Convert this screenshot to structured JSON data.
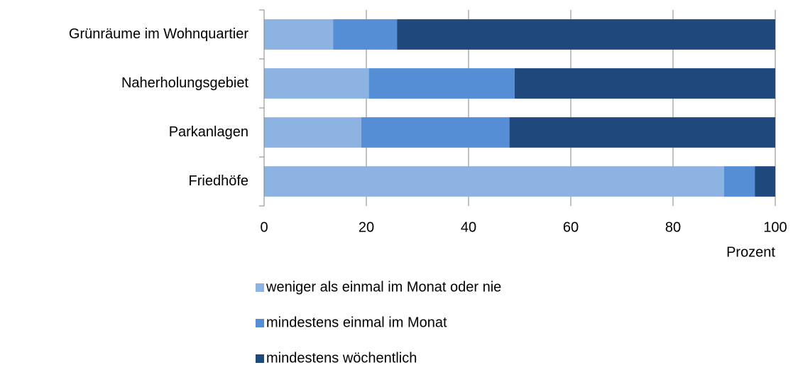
{
  "chart_data": {
    "type": "stacked_barh",
    "categories": [
      "Grünräume im Wohnquartier",
      "Naherholungsgebiet",
      "Parkanlagen",
      "Friedhöfe"
    ],
    "series": [
      {
        "name": "weniger als einmal im Monat oder nie",
        "color": "#8db3e2",
        "values": [
          13.5,
          20.5,
          19,
          90
        ]
      },
      {
        "name": "mindestens einmal im Monat",
        "color": "#558ed5",
        "values": [
          12.5,
          28.5,
          29,
          6
        ]
      },
      {
        "name": "mindestens wöchentlich",
        "color": "#1f497d",
        "values": [
          74,
          51,
          52,
          4
        ]
      }
    ],
    "xlim": [
      0,
      100
    ],
    "xticks": [
      0,
      20,
      40,
      60,
      80,
      100
    ],
    "xlabel": "Prozent",
    "grid": true,
    "legend": "bottom"
  }
}
